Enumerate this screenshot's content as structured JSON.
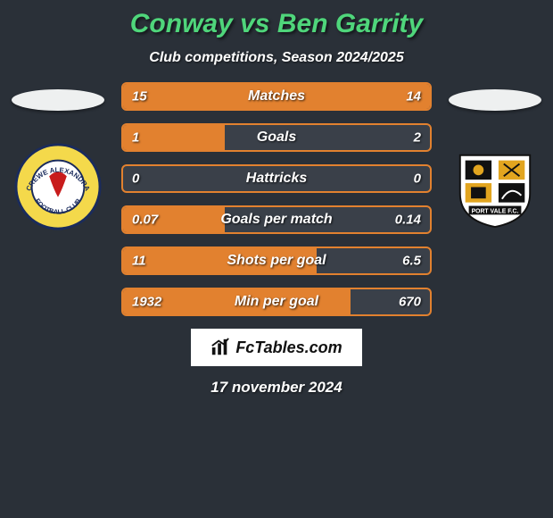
{
  "colors": {
    "background": "#2a3038",
    "title": "#4fd67b",
    "subtitle": "#ffffff",
    "bar_border": "#e2812f",
    "bar_fill": "#e2812f",
    "bar_bg": "#3a4049",
    "ellipse": "#eef0f0",
    "text": "#ffffff"
  },
  "title": {
    "player_left": "Conway",
    "vs": "vs",
    "player_right": "Ben Garrity"
  },
  "subtitle": "Club competitions, Season 2024/2025",
  "stats": [
    {
      "label": "Matches",
      "left_val": "15",
      "right_val": "14",
      "left_pct": 52,
      "right_pct": 48
    },
    {
      "label": "Goals",
      "left_val": "1",
      "right_val": "2",
      "left_pct": 33,
      "right_pct": 0
    },
    {
      "label": "Hattricks",
      "left_val": "0",
      "right_val": "0",
      "left_pct": 0,
      "right_pct": 0
    },
    {
      "label": "Goals per match",
      "left_val": "0.07",
      "right_val": "0.14",
      "left_pct": 33,
      "right_pct": 0
    },
    {
      "label": "Shots per goal",
      "left_val": "11",
      "right_val": "6.5",
      "left_pct": 63,
      "right_pct": 0
    },
    {
      "label": "Min per goal",
      "left_val": "1932",
      "right_val": "670",
      "left_pct": 74,
      "right_pct": 0
    }
  ],
  "club_left": {
    "name": "Crewe Alexandra",
    "ring_color": "#f4d94b",
    "inner_color": "#ffffff",
    "accent": "#c81c1c",
    "text": "CREWE ALEXANDRA FOOTBALL CLUB"
  },
  "club_right": {
    "name": "Port Vale",
    "bg": "#ffffff",
    "accent": "#e2a51f",
    "dark": "#111111"
  },
  "footer": {
    "brand": "FcTables.com"
  },
  "date": "17 november 2024"
}
